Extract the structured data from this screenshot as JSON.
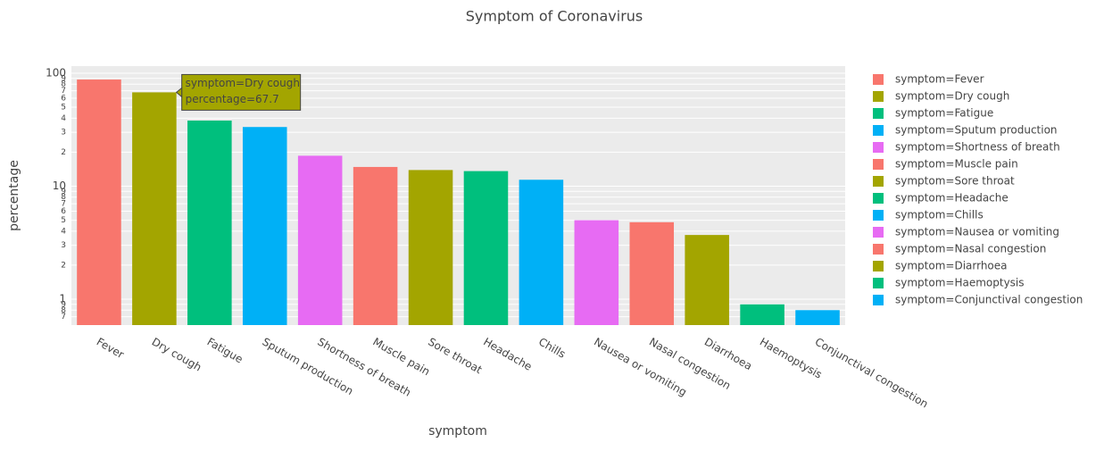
{
  "chart_data": {
    "type": "bar",
    "title": "Symptom of  Coronavirus",
    "x_label": "symptom",
    "y_label": "percentage",
    "categories": [
      "Fever",
      "Dry cough",
      "Fatigue",
      "Sputum production",
      "Shortness of breath",
      "Muscle pain",
      "Sore throat",
      "Headache",
      "Chills",
      "Nausea or vomiting",
      "Nasal congestion",
      "Diarrhoea",
      "Haemoptysis",
      "Conjunctival congestion"
    ],
    "values": [
      87.9,
      67.7,
      38.1,
      33.4,
      18.6,
      14.8,
      13.9,
      13.6,
      11.4,
      5.0,
      4.8,
      3.7,
      0.9,
      0.8
    ],
    "colors": [
      "#F8766D",
      "#A3A500",
      "#00BF7D",
      "#00B0F6",
      "#E76BF3",
      "#F8766D",
      "#A3A500",
      "#00BF7D",
      "#00B0F6",
      "#E76BF3",
      "#F8766D",
      "#A3A500",
      "#00BF7D",
      "#00B0F6"
    ],
    "legend": [
      "symptom=Fever",
      "symptom=Dry cough",
      "symptom=Fatigue",
      "symptom=Sputum production",
      "symptom=Shortness of breath",
      "symptom=Muscle pain",
      "symptom=Sore throat",
      "symptom=Headache",
      "symptom=Chills",
      "symptom=Nausea or vomiting",
      "symptom=Nasal congestion",
      "symptom=Diarrhoea",
      "symptom=Haemoptysis",
      "symptom=Conjunctival congestion"
    ],
    "log_y": true,
    "grid": true,
    "ylim": [
      0.59,
      115.6
    ],
    "yticks": [
      {
        "value": 0.7,
        "label": "7"
      },
      {
        "value": 0.8,
        "label": "8"
      },
      {
        "value": 0.9,
        "label": "9"
      },
      1,
      2,
      3,
      4,
      5,
      6,
      7,
      8,
      9,
      10,
      {
        "value": 20,
        "label": "2"
      },
      {
        "value": 30,
        "label": "3"
      },
      {
        "value": 40,
        "label": "4"
      },
      {
        "value": 50,
        "label": "5"
      },
      {
        "value": 60,
        "label": "6"
      },
      {
        "value": 70,
        "label": "7"
      },
      {
        "value": 80,
        "label": "8"
      },
      {
        "value": 90,
        "label": "9"
      },
      100
    ],
    "tooltip": {
      "lines": [
        "symptom=Dry cough",
        "percentage=67.7"
      ]
    }
  }
}
